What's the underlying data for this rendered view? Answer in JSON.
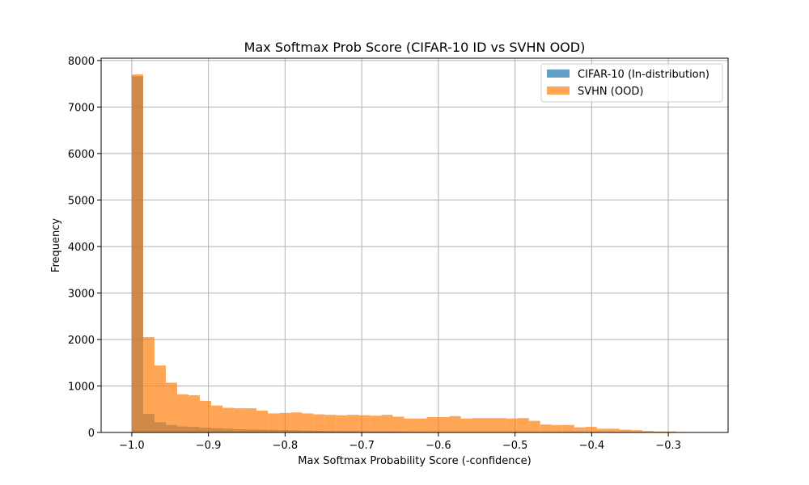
{
  "chart_data": {
    "type": "histogram",
    "title": "Max Softmax Prob Score (CIFAR-10 ID vs SVHN OOD)",
    "xlabel": "Max Softmax Probability Score (-confidence)",
    "ylabel": "Frequency",
    "xlim": [
      -1.04,
      -0.222
    ],
    "ylim": [
      0,
      8050
    ],
    "xticks": [
      -1.0,
      -0.9,
      -0.8,
      -0.7,
      -0.6,
      -0.5,
      -0.4,
      -0.3
    ],
    "xtick_labels": [
      "−1.0",
      "−0.9",
      "−0.8",
      "−0.7",
      "−0.6",
      "−0.5",
      "−0.4",
      "−0.3"
    ],
    "yticks": [
      0,
      1000,
      2000,
      3000,
      4000,
      5000,
      6000,
      7000,
      8000
    ],
    "ytick_labels": [
      "0",
      "1000",
      "2000",
      "3000",
      "4000",
      "5000",
      "6000",
      "7000",
      "8000"
    ],
    "grid": true,
    "legend_position": "top-right",
    "bin_start": -1.0,
    "bin_width": 0.0148,
    "series": [
      {
        "name": "CIFAR-10 (In-distribution)",
        "color": "#1f77b4",
        "alpha": 0.7,
        "values": [
          7660,
          400,
          220,
          160,
          130,
          120,
          100,
          90,
          80,
          70,
          65,
          60,
          55,
          50,
          45,
          40,
          35,
          30,
          28,
          25,
          22,
          20,
          18,
          16,
          14,
          12,
          10,
          9,
          8,
          7,
          6,
          5,
          5,
          4,
          4,
          3,
          3,
          2,
          2,
          2,
          1,
          1,
          1,
          1,
          1,
          1,
          0,
          0,
          0,
          0,
          0
        ]
      },
      {
        "name": "SVHN (OOD)",
        "color": "#ff7f0e",
        "alpha": 0.7,
        "values": [
          7700,
          2050,
          1440,
          1070,
          820,
          800,
          680,
          580,
          530,
          520,
          520,
          470,
          410,
          420,
          430,
          410,
          390,
          380,
          370,
          380,
          370,
          360,
          380,
          340,
          300,
          300,
          330,
          330,
          350,
          300,
          310,
          310,
          310,
          300,
          310,
          250,
          170,
          160,
          160,
          110,
          120,
          80,
          80,
          60,
          50,
          30,
          20,
          20,
          10,
          5,
          0
        ]
      }
    ]
  }
}
